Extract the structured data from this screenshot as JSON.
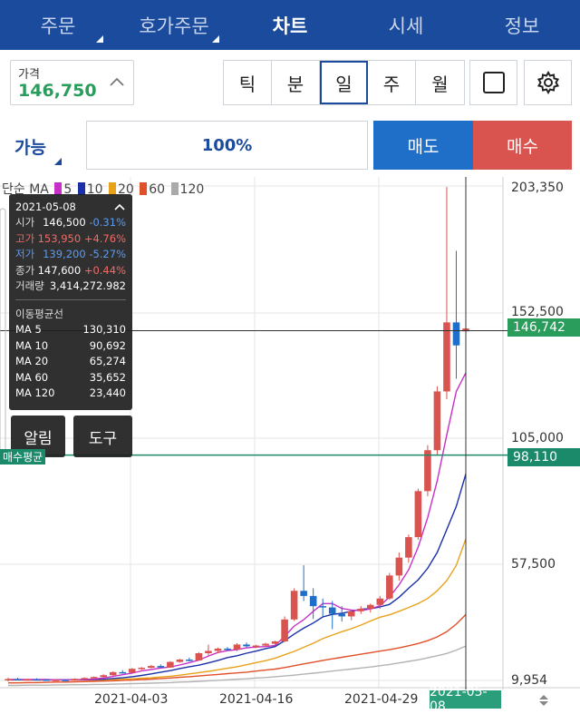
{
  "nav": {
    "tabs": [
      {
        "label": "주문",
        "active": false,
        "has_menu": true
      },
      {
        "label": "호가주문",
        "active": false,
        "has_menu": true
      },
      {
        "label": "차트",
        "active": true,
        "has_menu": false
      },
      {
        "label": "시세",
        "active": false,
        "has_menu": false
      },
      {
        "label": "정보",
        "active": false,
        "has_menu": false
      }
    ]
  },
  "price_field": {
    "label": "가격",
    "value": "146,750"
  },
  "periods": {
    "tick": "틱",
    "minute": "분",
    "day": "일",
    "week": "주",
    "month": "월",
    "selected": "일"
  },
  "order": {
    "qty_label": "가능",
    "qty_value": "100%",
    "sell_label": "매도",
    "buy_label": "매수"
  },
  "ma_legend": {
    "prefix": "단순 MA",
    "periods": [
      "5",
      "10",
      "20",
      "60",
      "120"
    ],
    "colors": [
      "#c82fc8",
      "#1a2fa8",
      "#e8a21a",
      "#e0502a",
      "#aaaaaa"
    ]
  },
  "info": {
    "date": "2021-05-08",
    "open": {
      "label": "시가",
      "value": "146,500",
      "change": "-0.31%"
    },
    "high": {
      "label": "고가",
      "value": "153,950",
      "change": "+4.76%"
    },
    "low": {
      "label": "저가",
      "value": "139,200",
      "change": "-5.27%"
    },
    "close": {
      "label": "종가",
      "value": "147,600",
      "change": "+0.44%"
    },
    "volume": {
      "label": "거래량",
      "value": "3,414,272.982"
    },
    "ma_title": "이동평균선",
    "ma": [
      {
        "label": "MA 5",
        "value": "130,310"
      },
      {
        "label": "MA 10",
        "value": "90,692"
      },
      {
        "label": "MA 20",
        "value": "65,274"
      },
      {
        "label": "MA 60",
        "value": "35,652"
      },
      {
        "label": "MA 120",
        "value": "23,440"
      }
    ],
    "alert_label": "알림",
    "tool_label": "도구"
  },
  "avg_buy_label": "매수평균",
  "colors": {
    "nav": "#1a4b9c",
    "up": "#d9534f",
    "down": "#1f6fc9",
    "current": "#2a9d5c",
    "avg": "#1a8a6a"
  },
  "chart_data": {
    "type": "candlestick",
    "y_ticks": [
      "203,350",
      "152,500",
      "105,000",
      "57,500",
      "9,954"
    ],
    "ylim": [
      9954,
      203350
    ],
    "x_ticks": [
      "2021-04-03",
      "2021-04-16",
      "2021-04-29"
    ],
    "crosshair_date": "2021-05-08",
    "current_price_tag": "146,742",
    "avg_buy_tag": "98,110",
    "current_price": 146742,
    "avg_buy_price": 98110,
    "candles": [
      [
        10,
        11,
        9.5,
        10.5
      ],
      [
        10.5,
        11,
        10,
        10.2
      ],
      [
        10.2,
        10.6,
        9.9,
        10.4
      ],
      [
        10.4,
        10.8,
        10.1,
        10.3
      ],
      [
        10.3,
        10.5,
        9.8,
        10.0
      ],
      [
        10.0,
        10.4,
        9.7,
        10.2
      ],
      [
        10.2,
        10.3,
        9.6,
        9.9
      ],
      [
        9.9,
        10.8,
        9.8,
        10.6
      ],
      [
        10.6,
        11.2,
        10.3,
        10.9
      ],
      [
        10.9,
        11.5,
        10.7,
        11.3
      ],
      [
        11.3,
        12.4,
        11.1,
        12.0
      ],
      [
        12.0,
        13.5,
        11.8,
        13.2
      ],
      [
        13.2,
        14.0,
        12.6,
        13.0
      ],
      [
        13.0,
        14.8,
        12.9,
        14.5
      ],
      [
        14.5,
        15.2,
        14.1,
        14.9
      ],
      [
        14.9,
        16.0,
        14.7,
        15.6
      ],
      [
        15.6,
        16.2,
        14.8,
        15.0
      ],
      [
        15.0,
        17.5,
        14.9,
        17.2
      ],
      [
        17.2,
        18.4,
        16.9,
        18.1
      ],
      [
        18.1,
        18.9,
        17.4,
        17.8
      ],
      [
        17.8,
        21.0,
        17.6,
        20.6
      ],
      [
        20.6,
        24.0,
        19.8,
        21.5
      ],
      [
        21.5,
        22.8,
        20.6,
        22.4
      ],
      [
        22.4,
        23.0,
        21.5,
        22.0
      ],
      [
        22.0,
        24.5,
        21.4,
        24.0
      ],
      [
        24.0,
        24.8,
        22.7,
        23.3
      ],
      [
        23.3,
        23.9,
        22.6,
        23.6
      ],
      [
        23.6,
        24.7,
        23.0,
        24.3
      ],
      [
        24.3,
        25.5,
        23.9,
        25.2
      ],
      [
        25.2,
        35.0,
        25.0,
        33.8
      ],
      [
        33.8,
        46.0,
        33.2,
        45.0
      ],
      [
        45.0,
        55.0,
        41.0,
        43.0
      ],
      [
        43.0,
        46.0,
        34.0,
        39.0
      ],
      [
        39.0,
        42.0,
        35.0,
        38.5
      ],
      [
        38.5,
        41.0,
        30.0,
        36.0
      ],
      [
        36.0,
        39.0,
        33.0,
        35.0
      ],
      [
        35.0,
        37.5,
        33.5,
        37.0
      ],
      [
        37.0,
        39.0,
        36.0,
        38.0
      ],
      [
        38.0,
        40.0,
        36.5,
        39.5
      ],
      [
        39.5,
        43.0,
        38.0,
        42.0
      ],
      [
        42.0,
        52.0,
        41.5,
        51.0
      ],
      [
        51.0,
        60.0,
        49.0,
        58.0
      ],
      [
        58.0,
        67.0,
        56.0,
        66.0
      ],
      [
        66.0,
        85.0,
        65.0,
        84.0
      ],
      [
        84.0,
        102.0,
        82.0,
        100.0
      ],
      [
        100.0,
        125.0,
        98.0,
        123.0
      ],
      [
        123.0,
        203.0,
        120.0,
        150.0
      ],
      [
        150.0,
        178.0,
        128.0,
        141.0
      ],
      [
        146.5,
        153.95,
        139.2,
        147.6
      ]
    ],
    "ma5": [
      10.3,
      10.3,
      10.3,
      10.3,
      10.3,
      10.2,
      10.2,
      10.2,
      10.3,
      10.5,
      10.9,
      11.5,
      12.2,
      12.8,
      13.7,
      14.2,
      14.8,
      15.2,
      16.0,
      16.9,
      17.9,
      19.5,
      20.9,
      21.6,
      22.0,
      22.7,
      23.0,
      23.2,
      23.6,
      27.2,
      31.2,
      33.7,
      37.0,
      40.0,
      40.0,
      38.1,
      37.5,
      37.3,
      37.9,
      39.2,
      42.6,
      47.4,
      53.2,
      62.1,
      73.6,
      88.0,
      106.0,
      123.0,
      130.3
    ],
    "ma10": [
      10.2,
      10.2,
      10.2,
      10.2,
      10.2,
      10.2,
      10.2,
      10.2,
      10.2,
      10.3,
      10.4,
      10.7,
      11.0,
      11.4,
      11.9,
      12.5,
      13.2,
      13.8,
      14.6,
      15.3,
      15.9,
      16.8,
      17.8,
      18.9,
      19.6,
      20.6,
      21.4,
      22.4,
      23.2,
      25.5,
      28.1,
      30.4,
      32.4,
      34.8,
      35.8,
      36.2,
      37.0,
      37.8,
      38.0,
      38.7,
      39.7,
      42.5,
      46.0,
      49.3,
      53.8,
      60.0,
      69.0,
      78.0,
      90.7
    ],
    "ma20": [
      10.1,
      10.1,
      10.1,
      10.1,
      10.1,
      10.1,
      10.1,
      10.1,
      10.1,
      10.1,
      10.2,
      10.3,
      10.4,
      10.6,
      10.8,
      11.0,
      11.3,
      11.6,
      12.0,
      12.5,
      13.0,
      13.5,
      14.1,
      14.7,
      15.3,
      16.1,
      16.9,
      17.7,
      18.7,
      20.0,
      21.3,
      22.9,
      24.5,
      26.3,
      27.7,
      29.0,
      30.2,
      31.6,
      33.2,
      34.7,
      35.6,
      37.0,
      38.5,
      40.0,
      42.0,
      45.0,
      49.0,
      55.0,
      65.3
    ],
    "ma60": [
      9.0,
      9.0,
      9.1,
      9.1,
      9.2,
      9.3,
      9.3,
      9.4,
      9.5,
      9.6,
      9.7,
      9.8,
      10.0,
      10.1,
      10.3,
      10.5,
      10.7,
      10.9,
      11.2,
      11.4,
      11.7,
      12.0,
      12.3,
      12.6,
      12.9,
      13.2,
      13.6,
      14.0,
      14.4,
      15.0,
      15.7,
      16.4,
      17.1,
      17.8,
      18.4,
      19.0,
      19.6,
      20.2,
      20.8,
      21.4,
      22.0,
      22.7,
      23.5,
      24.4,
      25.5,
      27.0,
      29.0,
      32.0,
      35.7
    ],
    "ma120": [
      8.0,
      8.0,
      8.1,
      8.1,
      8.1,
      8.2,
      8.2,
      8.3,
      8.3,
      8.4,
      8.4,
      8.5,
      8.6,
      8.7,
      8.8,
      8.9,
      9.0,
      9.1,
      9.3,
      9.4,
      9.6,
      9.8,
      10.0,
      10.2,
      10.4,
      10.6,
      10.9,
      11.1,
      11.4,
      11.7,
      12.0,
      12.4,
      12.8,
      13.2,
      13.6,
      14.0,
      14.4,
      14.8,
      15.2,
      15.7,
      16.2,
      16.8,
      17.4,
      18.0,
      18.8,
      19.6,
      20.5,
      21.8,
      23.4
    ]
  }
}
